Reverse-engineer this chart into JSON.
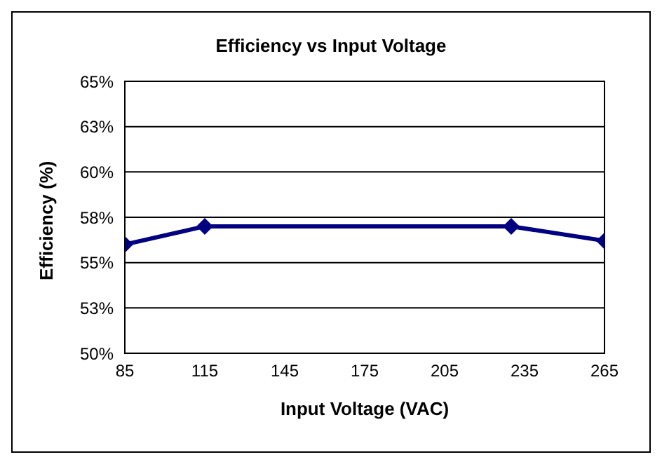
{
  "chart_data": {
    "type": "line",
    "title": "Efficiency vs Input Voltage",
    "xlabel": "Input Voltage (VAC)",
    "ylabel": "Efficiency (%)",
    "x": [
      85,
      115,
      230,
      265
    ],
    "series": [
      {
        "color": "#000080",
        "values": [
          56.0,
          57.0,
          57.0,
          56.2
        ]
      }
    ],
    "xlim": [
      85,
      265
    ],
    "xticks": [
      85,
      115,
      145,
      175,
      205,
      235,
      265
    ],
    "ylim": [
      50,
      65
    ],
    "yticks": [
      {
        "value": 50,
        "label": "50%"
      },
      {
        "value": 52.5,
        "label": "53%"
      },
      {
        "value": 55,
        "label": "55%"
      },
      {
        "value": 57.5,
        "label": "58%"
      },
      {
        "value": 60,
        "label": "60%"
      },
      {
        "value": 62.5,
        "label": "63%"
      },
      {
        "value": 65,
        "label": "65%"
      }
    ],
    "grid": "y",
    "legend": false,
    "marker": "diamond",
    "line_style": "solid"
  }
}
